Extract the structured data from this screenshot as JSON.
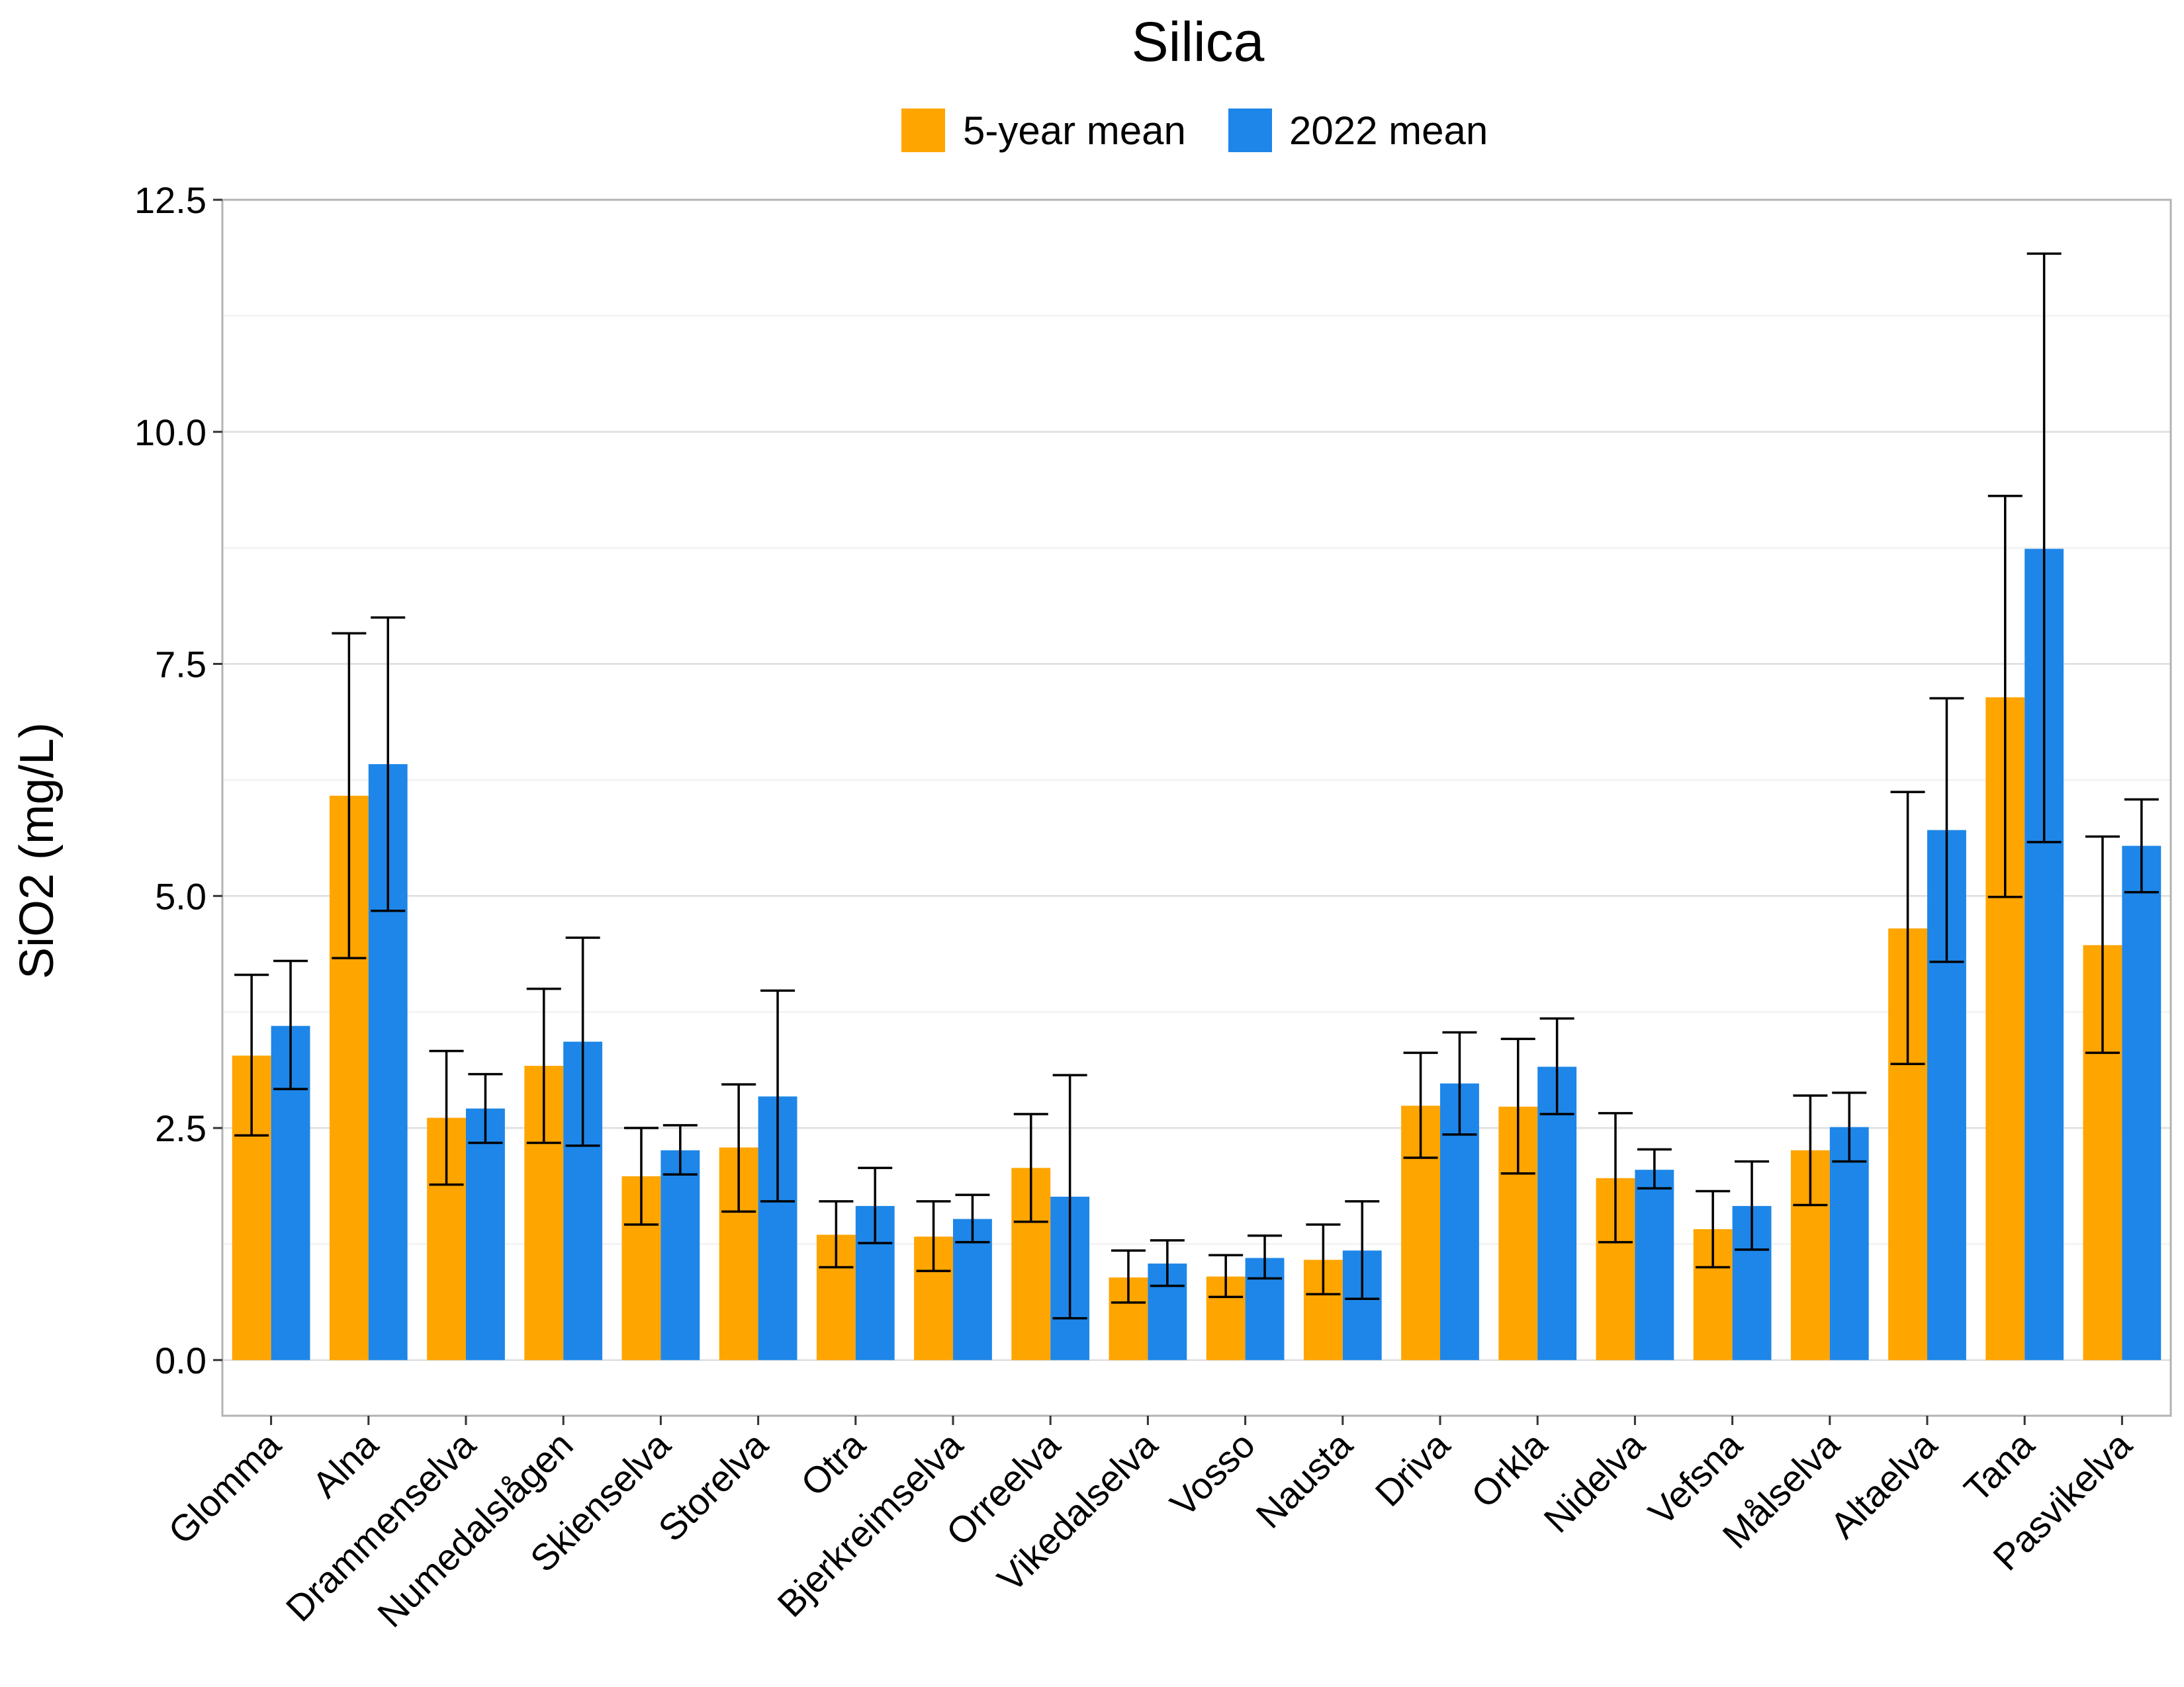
{
  "chart_data": {
    "type": "bar",
    "title": "Silica",
    "xlabel": "",
    "ylabel": "SiO2 (mg/L)",
    "ylim": [
      -0.6,
      12.5
    ],
    "yticks": [
      "0.0",
      "2.5",
      "5.0",
      "7.5",
      "10.0",
      "12.5"
    ],
    "legend_position": "top",
    "grid": true,
    "error_bars": true,
    "categories": [
      "Glomma",
      "Alna",
      "Drammenselva",
      "Numedalslågen",
      "Skienselva",
      "Storelva",
      "Otra",
      "Bjerkreimselva",
      "Orreelva",
      "Vikedalselva",
      "Vosso",
      "Nausta",
      "Driva",
      "Orkla",
      "Nidelva",
      "Vefsna",
      "Målselva",
      "Altaelva",
      "Tana",
      "Pasvikelva"
    ],
    "series": [
      {
        "name": "5-year mean",
        "color": "#FFA500",
        "values": [
          3.28,
          6.08,
          2.61,
          3.17,
          1.98,
          2.29,
          1.35,
          1.33,
          2.07,
          0.89,
          0.9,
          1.08,
          2.74,
          2.73,
          1.96,
          1.41,
          2.26,
          4.65,
          7.14,
          4.47
        ],
        "err_low": [
          2.42,
          4.33,
          1.89,
          2.34,
          1.46,
          1.6,
          1.0,
          0.96,
          1.49,
          0.62,
          0.68,
          0.71,
          2.18,
          2.01,
          1.27,
          1.0,
          1.67,
          3.19,
          4.99,
          3.31
        ],
        "err_high": [
          4.15,
          7.83,
          3.33,
          4.0,
          2.5,
          2.97,
          1.71,
          1.71,
          2.65,
          1.18,
          1.13,
          1.46,
          3.31,
          3.46,
          2.66,
          1.82,
          2.85,
          6.12,
          9.31,
          5.64
        ]
      },
      {
        "name": "2022 mean",
        "color": "#1E86E8",
        "values": [
          3.6,
          6.42,
          2.71,
          3.43,
          2.26,
          2.84,
          1.66,
          1.52,
          1.76,
          1.04,
          1.1,
          1.18,
          2.98,
          3.16,
          2.05,
          1.66,
          2.51,
          5.71,
          8.74,
          5.54
        ],
        "err_low": [
          2.92,
          4.84,
          2.34,
          2.31,
          2.0,
          1.71,
          1.26,
          1.27,
          0.45,
          0.8,
          0.88,
          0.66,
          2.43,
          2.65,
          1.85,
          1.19,
          2.14,
          4.29,
          5.58,
          5.04
        ],
        "err_high": [
          4.3,
          8.0,
          3.08,
          4.55,
          2.53,
          3.98,
          2.07,
          1.78,
          3.07,
          1.29,
          1.34,
          1.71,
          3.53,
          3.68,
          2.27,
          2.14,
          2.88,
          7.13,
          11.92,
          6.04
        ]
      }
    ]
  }
}
